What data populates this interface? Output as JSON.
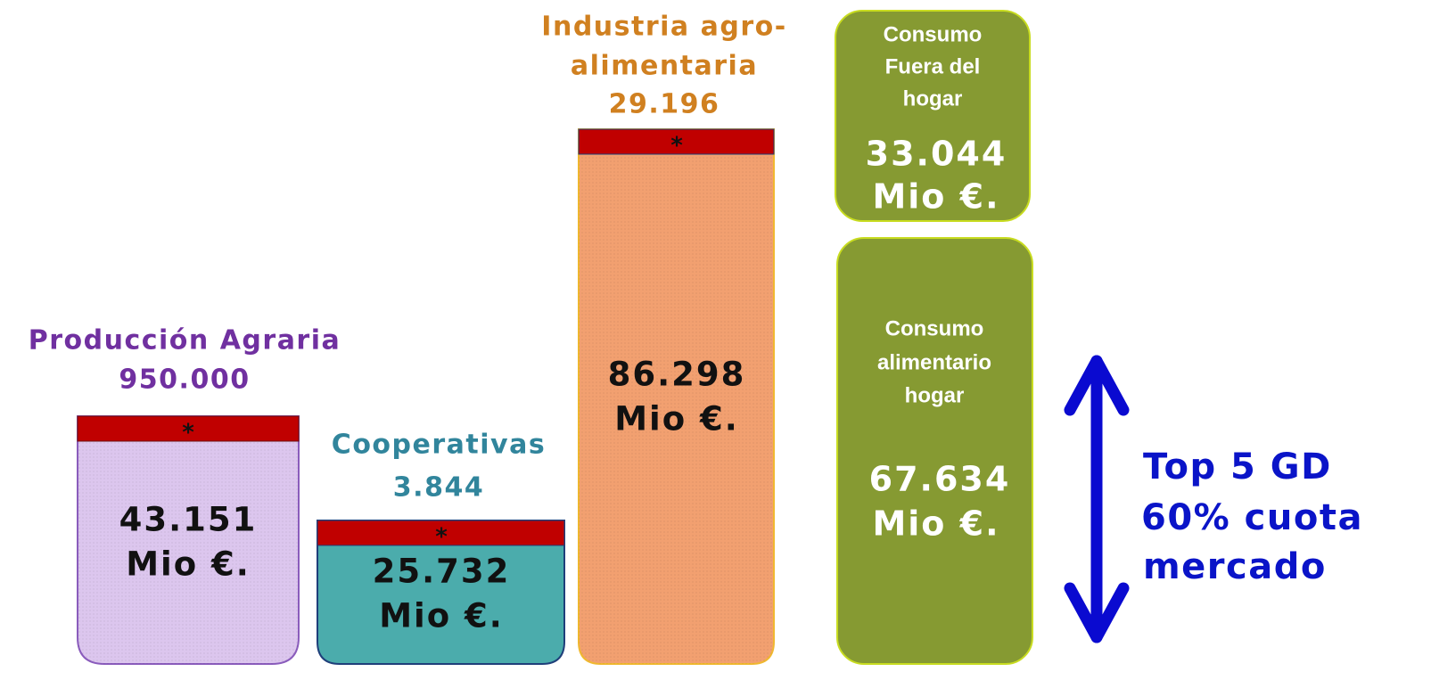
{
  "columns": [
    {
      "title": [
        "Producción Agraria",
        "950.000"
      ],
      "cap": "*",
      "value": [
        "43.151",
        "Mio €."
      ]
    },
    {
      "title": [
        "Cooperativas",
        "3.844"
      ],
      "cap": "*",
      "value": [
        "25.732",
        "Mio €."
      ]
    },
    {
      "title": [
        "Industria agro-",
        "alimentaria",
        "29.196"
      ],
      "cap": "*",
      "value": [
        "86.298",
        "Mio €."
      ]
    }
  ],
  "consumption": [
    {
      "title": [
        "Consumo",
        "Fuera del",
        "hogar"
      ],
      "value": [
        "33.044",
        "Mio €."
      ]
    },
    {
      "title": [
        "Consumo",
        "alimentario",
        "hogar"
      ],
      "value": [
        "67.634",
        "Mio €."
      ]
    }
  ],
  "note": [
    "Top 5 GD",
    "60% cuota",
    "mercado"
  ]
}
